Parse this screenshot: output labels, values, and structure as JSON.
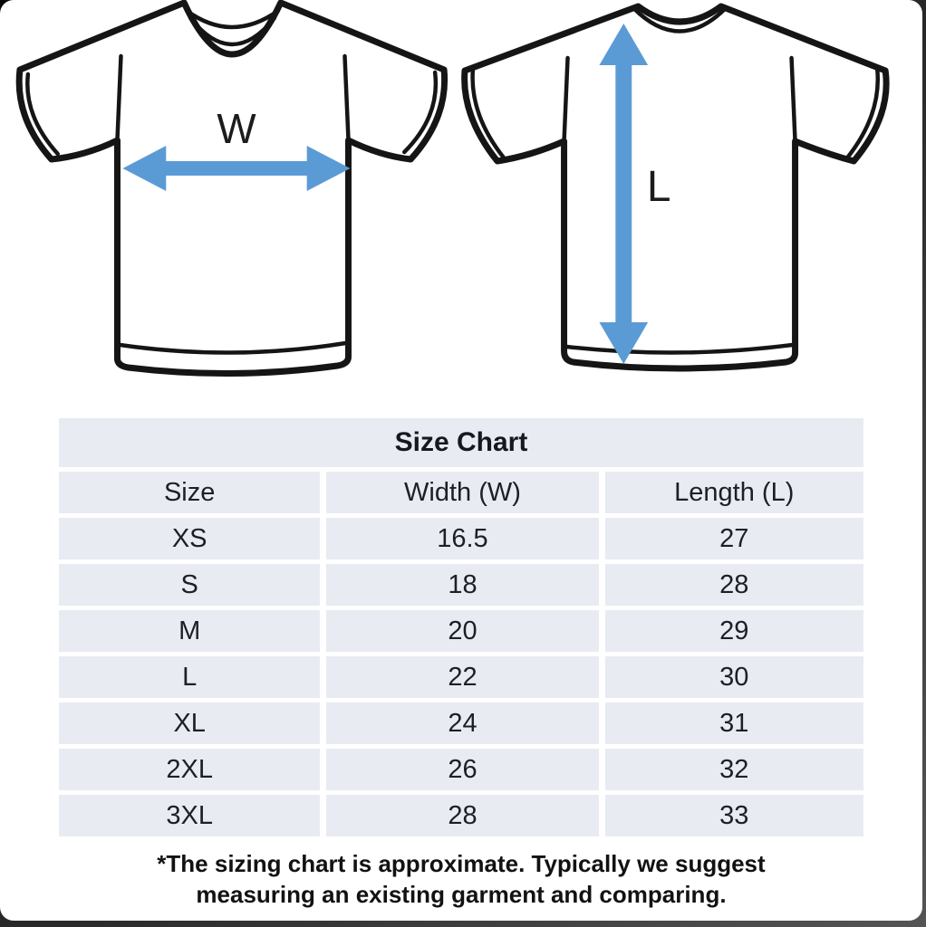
{
  "frame": {
    "card_bg": "#ffffff",
    "backdrop": "#2b2b2b"
  },
  "diagram": {
    "arrow_color": "#5b9bd5",
    "outline_color": "#151515",
    "front_shirt": {
      "view": "front",
      "label": "W"
    },
    "back_shirt": {
      "view": "back",
      "label": "L"
    }
  },
  "size_chart": {
    "title": "Size Chart",
    "columns": [
      "Size",
      "Width (W)",
      "Length (L)"
    ],
    "rows": [
      [
        "XS",
        "16.5",
        "27"
      ],
      [
        "S",
        "18",
        "28"
      ],
      [
        "M",
        "20",
        "29"
      ],
      [
        "L",
        "22",
        "30"
      ],
      [
        "XL",
        "24",
        "31"
      ],
      [
        "2XL",
        "26",
        "32"
      ],
      [
        "3XL",
        "28",
        "33"
      ]
    ],
    "row_bg": "#e9ebf3"
  },
  "footnote": {
    "line1": "*The sizing chart is approximate. Typically we suggest",
    "line2": "measuring an existing garment and comparing."
  }
}
